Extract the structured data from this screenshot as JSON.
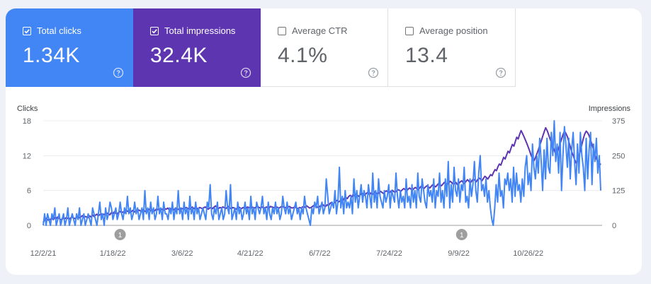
{
  "metrics": [
    {
      "label": "Total clicks",
      "value": "1.34K",
      "checked": true,
      "color": "#4285f4"
    },
    {
      "label": "Total impressions",
      "value": "32.4K",
      "checked": true,
      "color": "#5e35b1"
    },
    {
      "label": "Average CTR",
      "value": "4.1%",
      "checked": false,
      "color": "#ffffff"
    },
    {
      "label": "Average position",
      "value": "13.4",
      "checked": false,
      "color": "#ffffff"
    }
  ],
  "icons": {
    "checkbox": "checkbox-icon",
    "help": "help-circle-icon"
  },
  "chart_data": {
    "type": "line",
    "y_left_label": "Clicks",
    "y_right_label": "Impressions",
    "y_left_ticks": [
      "0",
      "6",
      "12",
      "18"
    ],
    "y_right_ticks": [
      "0",
      "125",
      "250",
      "375"
    ],
    "y_left_range": [
      0,
      18
    ],
    "y_right_range": [
      0,
      375
    ],
    "x_ticks": [
      "12/2/21",
      "1/18/22",
      "3/6/22",
      "4/21/22",
      "6/7/22",
      "7/24/22",
      "9/9/22",
      "10/26/22"
    ],
    "x_range": [
      "2021-12-02",
      "2022-12-14"
    ],
    "grid": true,
    "annotations": [
      {
        "label": "1",
        "date": "2022-01-23"
      },
      {
        "label": "1",
        "date": "2022-09-11"
      }
    ],
    "series": [
      {
        "name": "Clicks",
        "axis": "left",
        "color": "#4285f4",
        "values": [
          0,
          2,
          0,
          2,
          1,
          0,
          2,
          1,
          3,
          0,
          1,
          2,
          0,
          1,
          2,
          0,
          1,
          3,
          0,
          1,
          2,
          1,
          0,
          2,
          1,
          3,
          0,
          1,
          2,
          0,
          1,
          2,
          1,
          0,
          3,
          2,
          1,
          0,
          2,
          4,
          1,
          2,
          0,
          3,
          1,
          2,
          4,
          3,
          1,
          2,
          3,
          1,
          2,
          4,
          2,
          1,
          3,
          2,
          5,
          2,
          3,
          1,
          2,
          4,
          2,
          3,
          1,
          2,
          3,
          1,
          6,
          2,
          3,
          1,
          4,
          2,
          3,
          1,
          2,
          5,
          2,
          3,
          1,
          4,
          2,
          2,
          1,
          3,
          2,
          4,
          1,
          3,
          2,
          6,
          2,
          3,
          1,
          4,
          2,
          3,
          1,
          5,
          2,
          3,
          1,
          4,
          2,
          3,
          1,
          2,
          3,
          2,
          1,
          4,
          3,
          7,
          2,
          1,
          3,
          2,
          4,
          1,
          2,
          3,
          1,
          2,
          6,
          3,
          2,
          7,
          1,
          2,
          3,
          1,
          4,
          2,
          3,
          1,
          2,
          4,
          2,
          3,
          1,
          5,
          2,
          3,
          1,
          4,
          3,
          2,
          3,
          5,
          2,
          3,
          1,
          4,
          2,
          1,
          3,
          2,
          4,
          2,
          3,
          1,
          2,
          5,
          3,
          2,
          4,
          2,
          3,
          1,
          2,
          3,
          4,
          2,
          3,
          1,
          3,
          2,
          5,
          3,
          2,
          1,
          0,
          3,
          2,
          4,
          3,
          5,
          2,
          3,
          4,
          2,
          3,
          8,
          5,
          2,
          3,
          4,
          3,
          6,
          2,
          4,
          10,
          3,
          5,
          2,
          6,
          3,
          4,
          3,
          5,
          2,
          8,
          4,
          6,
          3,
          5,
          7,
          4,
          6,
          5,
          3,
          7,
          5,
          3,
          9,
          4,
          6,
          3,
          8,
          5,
          4,
          3,
          6,
          4,
          5,
          7,
          3,
          6,
          5,
          4,
          9,
          5,
          3,
          6,
          4,
          5,
          3,
          8,
          4,
          5,
          3,
          7,
          4,
          6,
          3,
          9,
          5,
          4,
          8,
          6,
          4,
          3,
          7,
          5,
          6,
          4,
          8,
          3,
          6,
          5,
          9,
          4,
          6,
          3,
          8,
          5,
          11,
          3,
          7,
          4,
          10,
          6,
          5,
          8,
          4,
          7,
          6,
          10,
          4,
          5,
          3,
          8,
          5,
          7,
          11,
          6,
          4,
          9,
          12,
          6,
          7,
          5,
          8,
          4,
          6,
          3,
          1,
          0,
          3,
          7,
          4,
          9,
          5,
          6,
          3,
          8,
          7,
          9,
          6,
          8,
          4,
          10,
          5,
          9,
          6,
          7,
          4,
          8,
          5,
          10,
          12,
          7,
          9,
          6,
          14,
          10,
          8,
          12,
          9,
          15,
          11,
          6,
          13,
          8,
          15,
          10,
          9,
          16,
          12,
          18,
          11,
          14,
          9,
          16,
          6,
          12,
          17,
          14,
          10,
          15,
          8,
          13,
          16,
          11,
          7,
          14,
          9,
          16,
          12,
          10,
          6,
          15,
          8,
          13,
          16,
          7,
          14,
          11,
          15,
          9,
          12,
          6
        ]
      },
      {
        "name": "Impressions",
        "axis": "right",
        "color": "#5e35b1",
        "values": [
          10,
          20,
          25,
          20,
          18,
          22,
          25,
          20,
          28,
          24,
          30,
          25,
          20,
          22,
          26,
          24,
          28,
          25,
          22,
          27,
          30,
          26,
          24,
          28,
          32,
          27,
          30,
          35,
          28,
          32,
          30,
          28,
          34,
          30,
          38,
          32,
          36,
          40,
          34,
          38,
          42,
          36,
          40,
          38,
          44,
          40,
          38,
          45,
          42,
          48,
          44,
          40,
          46,
          50,
          46,
          48,
          44,
          50,
          52,
          48,
          46,
          50,
          54,
          48,
          52,
          50,
          55,
          52,
          50,
          56,
          52,
          48,
          54,
          58,
          52,
          56,
          54,
          52,
          58,
          56,
          60,
          55,
          58,
          54,
          60,
          58,
          62,
          56,
          60,
          58,
          55,
          60,
          62,
          58,
          56,
          62,
          60,
          58,
          62,
          64,
          60,
          58,
          62,
          66,
          60,
          64,
          62,
          58,
          64,
          62,
          60,
          64,
          66,
          62,
          58,
          62,
          64,
          60,
          66,
          70,
          64,
          60,
          64,
          62,
          66,
          64,
          60,
          64,
          68,
          62,
          60,
          64,
          62,
          58,
          62,
          66,
          62,
          60,
          64,
          62,
          60,
          66,
          64,
          62,
          66,
          64,
          62,
          66,
          68,
          64,
          62,
          66,
          64,
          62,
          66,
          64,
          62,
          68,
          66,
          64,
          62,
          66,
          64,
          62,
          66,
          68,
          66,
          64,
          62,
          66,
          68,
          64,
          62,
          64,
          66,
          62,
          60,
          64,
          62,
          66,
          68,
          64,
          70,
          66,
          62,
          64,
          68,
          72,
          70,
          66,
          64,
          68,
          72,
          75,
          70,
          68,
          74,
          70,
          78,
          82,
          76,
          80,
          86,
          90,
          84,
          88,
          94,
          90,
          98,
          100,
          96,
          104,
          108,
          102,
          110,
          106,
          112,
          108,
          104,
          110,
          116,
          112,
          108,
          114,
          118,
          112,
          116,
          110,
          114,
          120,
          116,
          112,
          118,
          122,
          118,
          114,
          120,
          124,
          120,
          116,
          122,
          126,
          122,
          118,
          124,
          128,
          126,
          122,
          128,
          132,
          128,
          124,
          130,
          134,
          130,
          126,
          132,
          136,
          132,
          128,
          134,
          140,
          136,
          132,
          138,
          142,
          138,
          134,
          140,
          146,
          142,
          138,
          144,
          150,
          146,
          142,
          148,
          154,
          150,
          146,
          152,
          158,
          154,
          148,
          150,
          154,
          146,
          150,
          156,
          160,
          154,
          150,
          158,
          164,
          158,
          152,
          160,
          166,
          162,
          156,
          164,
          170,
          166,
          160,
          168,
          176,
          172,
          166,
          174,
          182,
          178,
          190,
          200,
          196,
          210,
          220,
          216,
          230,
          244,
          238,
          252,
          266,
          260,
          276,
          290,
          284,
          300,
          316,
          310,
          326,
          340,
          330,
          318,
          306,
          294,
          280,
          266,
          250,
          238,
          232,
          244,
          258,
          272,
          288,
          304,
          320,
          336,
          350,
          340,
          326,
          310,
          296,
          282,
          268,
          256,
          262,
          278,
          294,
          310,
          326,
          338,
          330,
          318,
          300,
          282,
          264,
          250,
          236,
          224,
          232,
          250,
          268,
          290,
          312,
          328,
          338,
          332,
          322,
          306,
          290,
          272,
          254,
          240,
          226,
          214,
          222
        ]
      }
    ]
  }
}
